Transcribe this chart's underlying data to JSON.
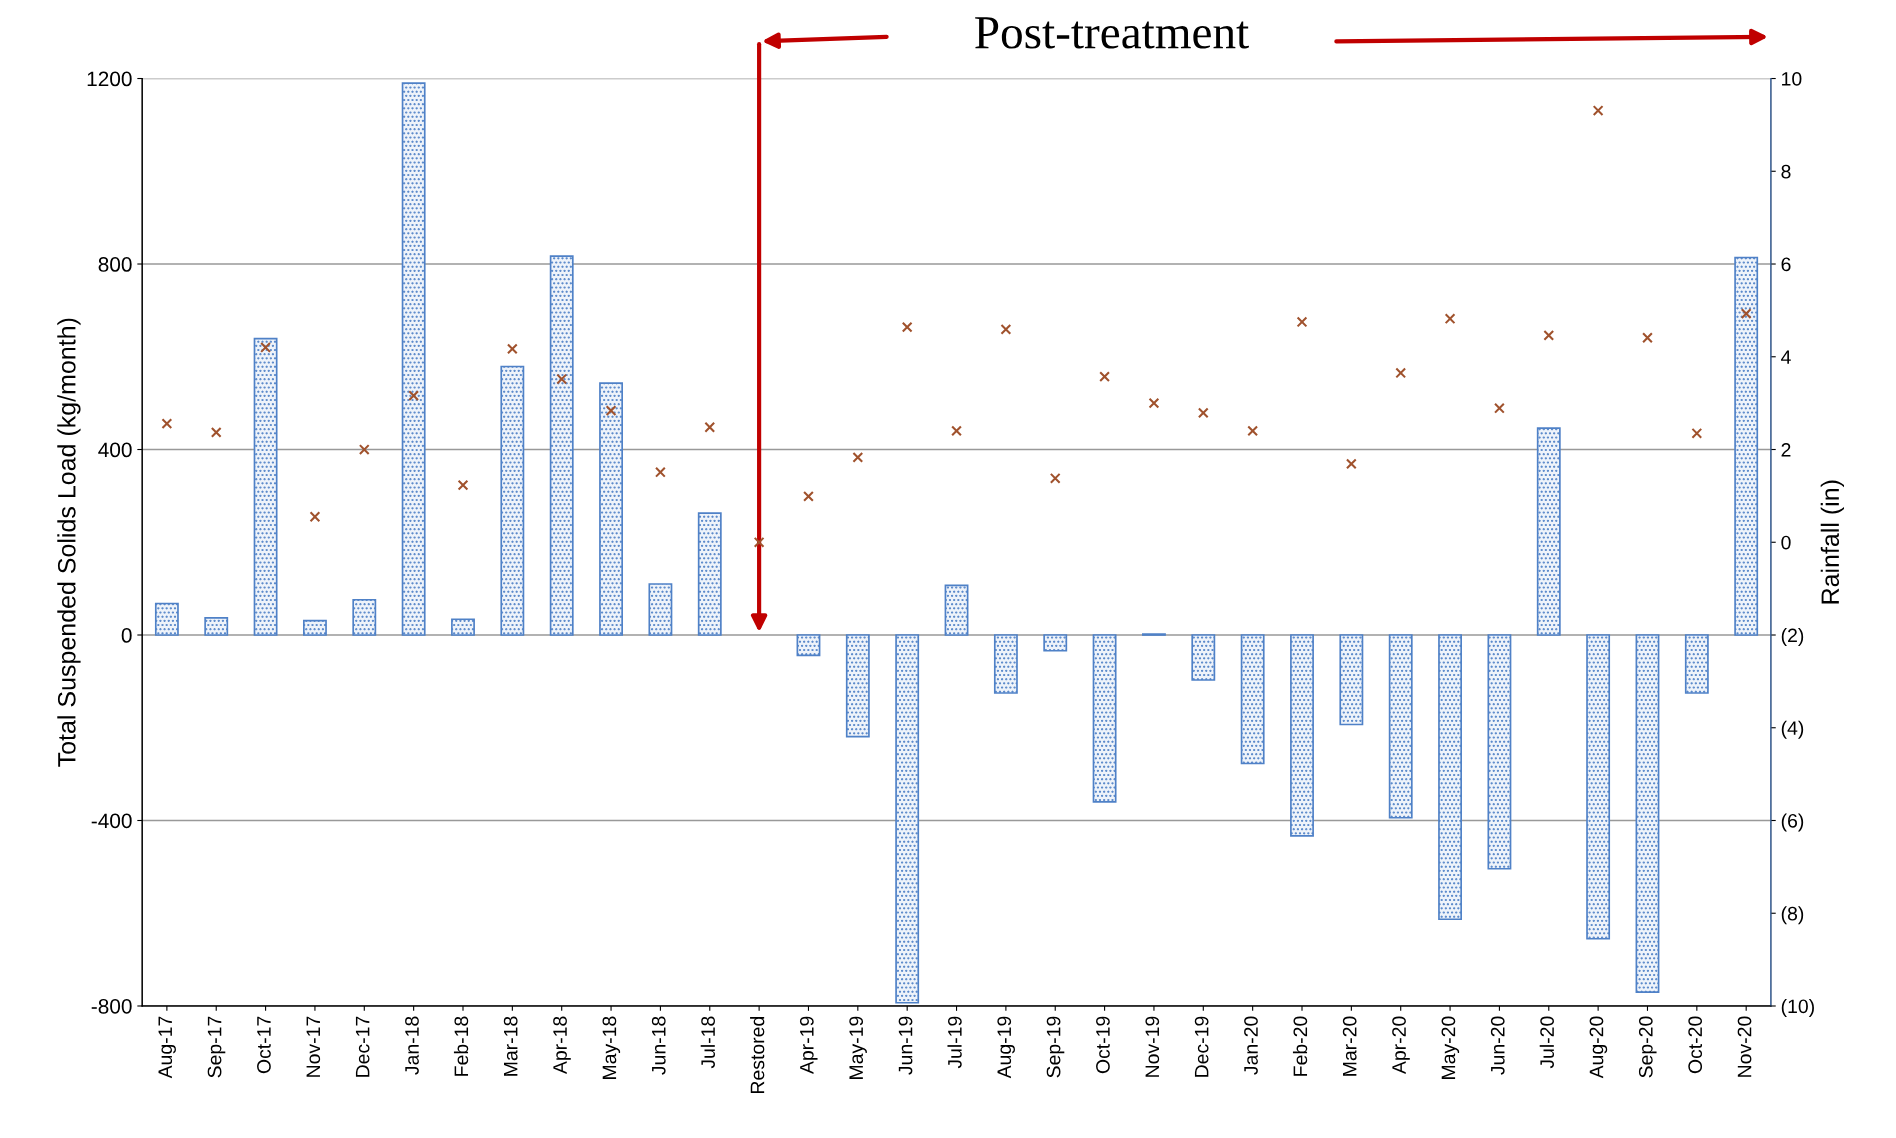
{
  "chart_data": {
    "type": "bar",
    "categories": [
      "Aug-17",
      "Sep-17",
      "Oct-17",
      "Nov-17",
      "Dec-17",
      "Jan-18",
      "Feb-18",
      "Mar-18",
      "Apr-18",
      "May-18",
      "Jun-18",
      "Jul-18",
      "Restored",
      "Apr-19",
      "May-19",
      "Jun-19",
      "Jul-19",
      "Aug-19",
      "Sep-19",
      "Oct-19",
      "Nov-19",
      "Dec-19",
      "Jan-20",
      "Feb-20",
      "Mar-20",
      "Apr-20",
      "May-20",
      "Jun-20",
      "Jul-20",
      "Aug-20",
      "Sep-20",
      "Oct-20",
      "Nov-20"
    ],
    "series": [
      {
        "color": "#4f81c7",
        "values": [
          68,
          37,
          639,
          31,
          76,
          1190,
          34,
          579,
          817,
          543,
          110,
          263,
          null,
          -44,
          -219,
          -793,
          107,
          -125,
          -34,
          -360,
          2,
          -97,
          -277,
          -433,
          -193,
          -394,
          -613,
          -504,
          446,
          -655,
          -770,
          -125,
          814
        ]
      },
      {
        "type": "scatter",
        "axis": "y2",
        "color": "#a0522d",
        "marker": "cross",
        "values": [
          2.56,
          2.37,
          4.2,
          0.55,
          2.0,
          3.16,
          1.23,
          4.17,
          3.52,
          2.84,
          1.51,
          2.48,
          0,
          0.99,
          1.83,
          4.64,
          2.4,
          4.59,
          1.38,
          3.57,
          3.0,
          2.79,
          2.4,
          4.75,
          1.69,
          3.65,
          4.82,
          2.89,
          4.46,
          9.31,
          4.41,
          2.35,
          4.93
        ]
      }
    ],
    "ylabel": "Total Suspended Solids Load (kg/month)",
    "y2label": "Rainfall (in)",
    "ylim": [
      -800,
      1200
    ],
    "yticks": [
      -800,
      -400,
      0,
      400,
      800,
      1200
    ],
    "y2lim": [
      -10,
      10
    ],
    "y2ticks": [
      {
        "value": -10,
        "label": "(10)"
      },
      {
        "value": -8,
        "label": "(8)"
      },
      {
        "value": -6,
        "label": "(6)"
      },
      {
        "value": -4,
        "label": "(4)"
      },
      {
        "value": -2,
        "label": "(2)"
      },
      0,
      2,
      4,
      6,
      8,
      10
    ],
    "grid": "y",
    "annotations": [
      "Post-treatment"
    ]
  }
}
